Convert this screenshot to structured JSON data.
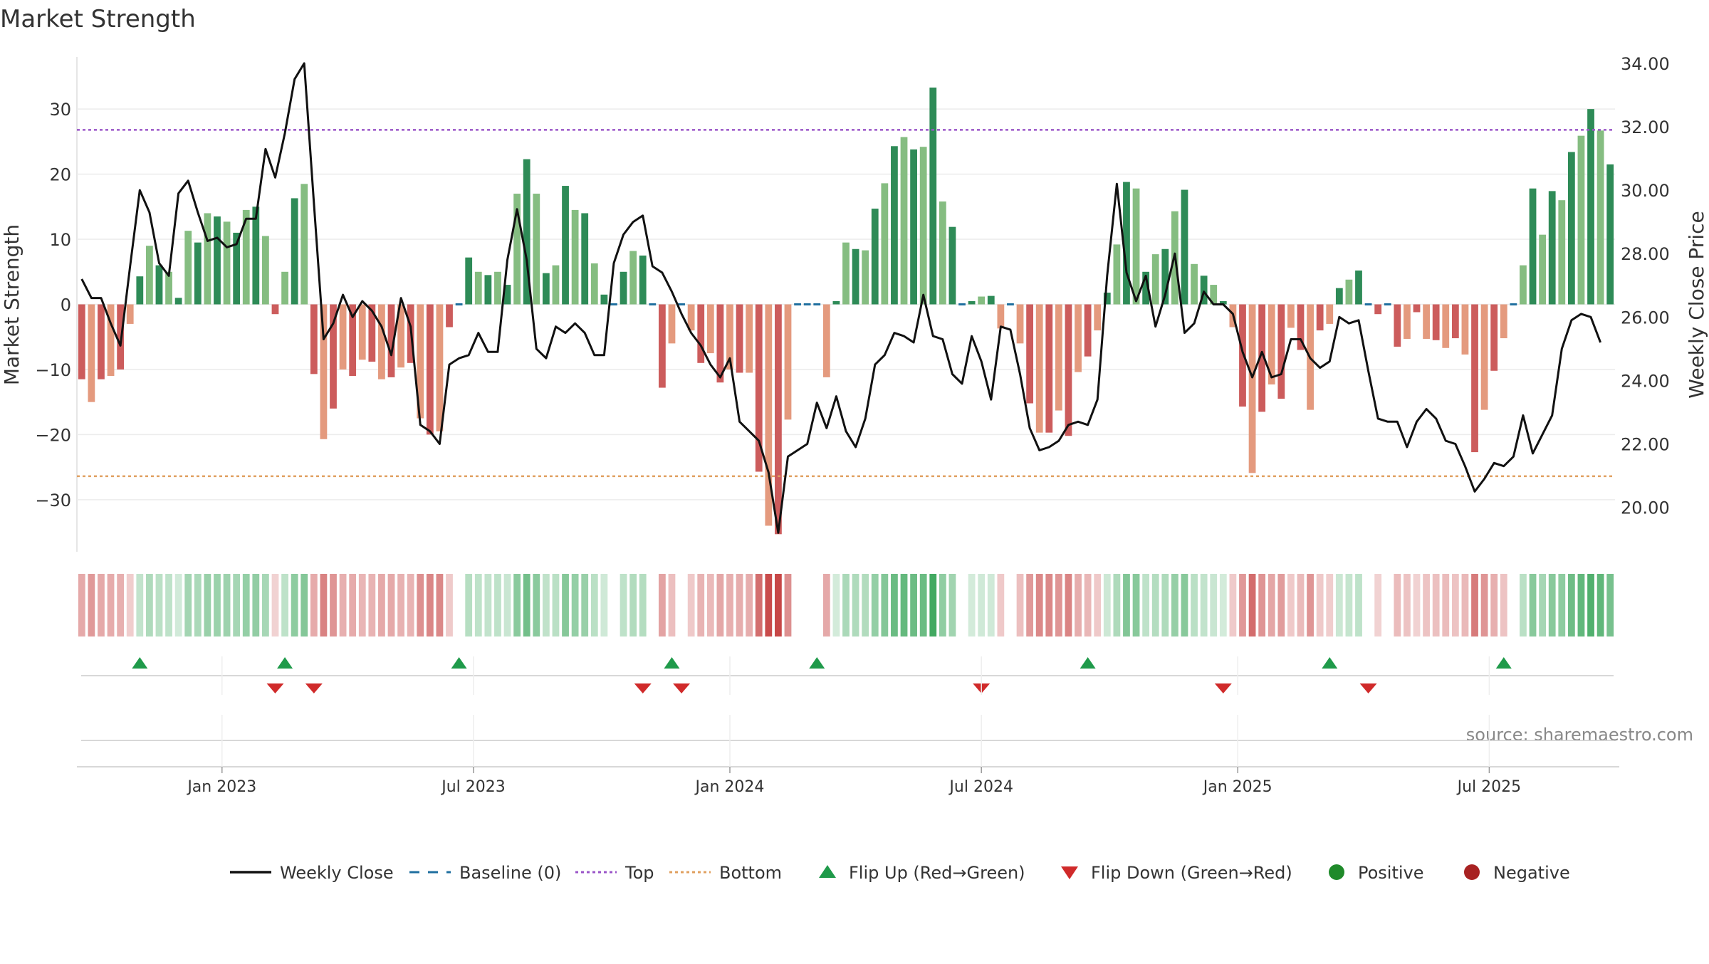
{
  "chart_data": {
    "type": "bar",
    "title": "Market Strength",
    "ylabel": "Market Strength",
    "y2label": "Weekly Close Price",
    "source": "source: sharemaestro.com",
    "ylim": [
      -38,
      38
    ],
    "y2lim": [
      18.6,
      34.2
    ],
    "yticks": [
      -30,
      -20,
      -10,
      0,
      10,
      20,
      30
    ],
    "y2ticks": [
      "20.00",
      "22.00",
      "24.00",
      "26.00",
      "28.00",
      "30.00",
      "32.00",
      "34.00"
    ],
    "xticks": [
      {
        "label": "Jan 2023",
        "week": 15
      },
      {
        "label": "Jul 2023",
        "week": 41
      },
      {
        "label": "Jan 2024",
        "week": 67.5
      },
      {
        "label": "Jul 2024",
        "week": 93.5
      },
      {
        "label": "Jan 2025",
        "week": 120
      },
      {
        "label": "Jul 2025",
        "week": 146
      }
    ],
    "top_threshold": 26.8,
    "bottom_threshold": -26.4,
    "strength": [
      -11.5,
      -15,
      -11.5,
      -11,
      -10,
      -3,
      4.3,
      9,
      6,
      5,
      1,
      11.3,
      9.5,
      14,
      13.5,
      12.7,
      11,
      14.5,
      15,
      10.5,
      -1.5,
      5,
      16.3,
      18.5,
      -10.7,
      -20.7,
      -16,
      -10,
      -11,
      -8.5,
      -8.8,
      -11.5,
      -11.2,
      -9.7,
      -9,
      -17.5,
      -20,
      -19.5,
      -3.5,
      0,
      7.2,
      5,
      4.5,
      5,
      3,
      17,
      22.3,
      17,
      4.8,
      6,
      18.2,
      14.5,
      14,
      6.3,
      1.5,
      0,
      5,
      8.2,
      7.5,
      0,
      -12.8,
      -6,
      0,
      -4,
      -9,
      -7.5,
      -12,
      -10,
      -10.5,
      -10.5,
      -25.7,
      -34,
      -35.3,
      -17.7,
      0,
      0,
      0,
      -11.2,
      0.5,
      9.5,
      8.5,
      8.3,
      14.7,
      18.6,
      24.3,
      25.7,
      23.8,
      24.2,
      33.3,
      15.8,
      11.9,
      0,
      0.5,
      1.2,
      1.3,
      -3.7,
      0,
      -6,
      -15.2,
      -19.7,
      -19.7,
      -16.3,
      -20.2,
      -10.4,
      -8,
      -4,
      1.8,
      9.2,
      18.8,
      17.8,
      5,
      7.7,
      8.5,
      14.3,
      17.6,
      6.2,
      4.4,
      3,
      0.5,
      -3.5,
      -15.7,
      -25.9,
      -16.5,
      -12.3,
      -14.5,
      -3.6,
      -7,
      -16.2,
      -4,
      -3,
      2.5,
      3.8,
      5.2,
      0,
      -1.5,
      0,
      -6.5,
      -5.3,
      -1.2,
      -5.3,
      -5.5,
      -6.7,
      -5.2,
      -7.7,
      -22.7,
      -16.2,
      -10.2,
      -5.2,
      0,
      6,
      17.8,
      10.7,
      17.4,
      16,
      23.4,
      25.9,
      30,
      26.7,
      21.5
    ],
    "weekly_close": [
      27.2,
      26.6,
      26.6,
      25.8,
      25.1,
      27.6,
      30,
      29.3,
      27.7,
      27.3,
      29.9,
      30.3,
      29.3,
      28.4,
      28.5,
      28.2,
      28.3,
      29.1,
      29.1,
      31.3,
      30.4,
      31.8,
      33.5,
      34,
      29.6,
      25.3,
      25.8,
      26.7,
      26,
      26.5,
      26.2,
      25.7,
      24.8,
      26.6,
      25.7,
      22.6,
      22.4,
      22,
      24.5,
      24.7,
      24.8,
      25.5,
      24.9,
      24.9,
      27.8,
      29.4,
      27.8,
      25,
      24.7,
      25.7,
      25.5,
      25.8,
      25.5,
      24.8,
      24.8,
      27.7,
      28.6,
      29,
      29.2,
      27.6,
      27.4,
      26.8,
      26.1,
      25.5,
      25.1,
      24.5,
      24.1,
      24.7,
      22.7,
      22.4,
      22.1,
      21.1,
      19.2,
      21.6,
      21.8,
      22,
      23.3,
      22.5,
      23.5,
      22.4,
      21.9,
      22.8,
      24.5,
      24.8,
      25.5,
      25.4,
      25.2,
      26.7,
      25.4,
      25.3,
      24.2,
      23.9,
      25.4,
      24.6,
      23.4,
      25.7,
      25.6,
      24.2,
      22.5,
      21.8,
      21.9,
      22.1,
      22.6,
      22.7,
      22.6,
      23.4,
      27.3,
      30.2,
      27.4,
      26.5,
      27.3,
      25.7,
      26.7,
      28,
      25.5,
      25.8,
      26.8,
      26.4,
      26.4,
      26.1,
      24.9,
      24.1,
      24.9,
      24.1,
      24.2,
      25.3,
      25.3,
      24.7,
      24.4,
      24.6,
      26,
      25.8,
      25.9,
      24.3,
      22.8,
      22.7,
      22.7,
      21.9,
      22.7,
      23.1,
      22.8,
      22.1,
      22,
      21.3,
      20.5,
      20.9,
      21.4,
      21.3,
      21.6,
      22.9,
      21.7,
      22.3,
      22.9,
      25,
      25.9,
      26.1,
      26,
      25.2
    ],
    "flip_up_weeks": [
      6,
      21,
      39,
      61,
      76,
      104,
      129,
      147
    ],
    "flip_down_weeks": [
      20,
      24,
      58,
      62,
      93,
      118,
      133
    ],
    "legend": [
      {
        "label": "Weekly Close",
        "symbol": "line",
        "color": "#111111"
      },
      {
        "label": "Baseline (0)",
        "symbol": "dash",
        "color": "#1f6f9f"
      },
      {
        "label": "Top",
        "symbol": "dot",
        "color": "#9a55c8"
      },
      {
        "label": "Bottom",
        "symbol": "dot",
        "color": "#e0a060"
      },
      {
        "label": "Flip Up (Red→Green)",
        "symbol": "tri-up",
        "color": "#1f9a4a"
      },
      {
        "label": "Flip Down (Green→Red)",
        "symbol": "tri-down",
        "color": "#d02a2a"
      },
      {
        "label": "Positive",
        "symbol": "dot-circle",
        "color": "#1f8a2a"
      },
      {
        "label": "Negative",
        "symbol": "dot-circle",
        "color": "#a82222"
      }
    ],
    "legend_position": "bottom",
    "colors": {
      "pos_strong": "#2e8b57",
      "pos_light": "#85bd81",
      "neg_strong": "#cc5c5c",
      "neg_light": "#e49a7e",
      "baseline": "#1f6f9f",
      "line": "#111111"
    }
  }
}
